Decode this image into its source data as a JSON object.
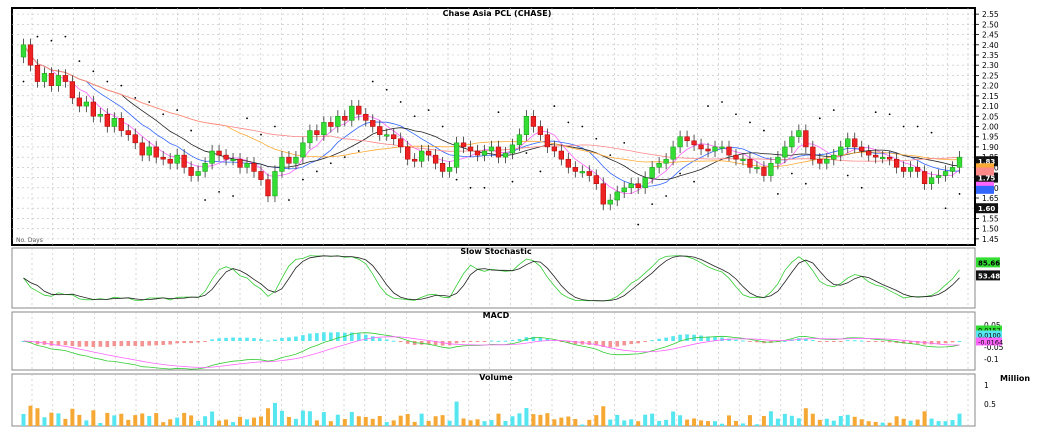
{
  "chart_data": {
    "type": "candlestick",
    "title": "Chase Asia PCL (CHASE)",
    "price_axis": {
      "ticks": [
        "2.55",
        "2.50",
        "2.45",
        "2.40",
        "2.35",
        "2.30",
        "2.25",
        "2.20",
        "2.15",
        "2.10",
        "2.05",
        "2.00",
        "1.95",
        "1.90",
        "1.85",
        "1.80",
        "1.75",
        "1.70",
        "1.65",
        "1.60",
        "1.55",
        "1.50",
        "1.45"
      ],
      "ylim": [
        1.42,
        2.58
      ]
    },
    "candles_close": [
      2.4,
      2.3,
      2.22,
      2.26,
      2.2,
      2.25,
      2.22,
      2.14,
      2.1,
      2.12,
      2.05,
      2.06,
      2.0,
      2.04,
      1.98,
      1.96,
      1.92,
      1.86,
      1.9,
      1.85,
      1.84,
      1.82,
      1.86,
      1.8,
      1.76,
      1.78,
      1.82,
      1.88,
      1.86,
      1.84,
      1.84,
      1.8,
      1.82,
      1.78,
      1.74,
      1.66,
      1.78,
      1.85,
      1.82,
      1.85,
      1.92,
      1.98,
      1.96,
      2.02,
      2.0,
      2.05,
      2.03,
      2.1,
      2.06,
      2.03,
      2.0,
      1.96,
      1.96,
      1.94,
      1.9,
      1.84,
      1.83,
      1.88,
      1.86,
      1.82,
      1.78,
      1.8,
      1.92,
      1.9,
      1.88,
      1.86,
      1.88,
      1.9,
      1.85,
      1.87,
      1.91,
      1.96,
      2.05,
      2.0,
      1.96,
      1.9,
      1.88,
      1.84,
      1.8,
      1.78,
      1.78,
      1.76,
      1.72,
      1.62,
      1.64,
      1.68,
      1.7,
      1.72,
      1.7,
      1.75,
      1.8,
      1.82,
      1.84,
      1.9,
      1.95,
      1.93,
      1.91,
      1.89,
      1.88,
      1.9,
      1.9,
      1.86,
      1.84,
      1.84,
      1.8,
      1.8,
      1.76,
      1.82,
      1.85,
      1.9,
      1.95,
      1.98,
      1.9,
      1.84,
      1.82,
      1.84,
      1.86,
      1.9,
      1.94,
      1.9,
      1.88,
      1.86,
      1.85,
      1.85,
      1.84,
      1.8,
      1.78,
      1.8,
      1.78,
      1.72,
      1.75,
      1.76,
      1.78,
      1.8,
      1.85
    ],
    "overlays": [
      "moving-average-lines",
      "parabolic-sar"
    ],
    "price_labels": [
      "1.83",
      "1.75",
      "1.60"
    ],
    "period_label": "No. Days",
    "stochastic": {
      "title": "Slow Stochastic",
      "labels": [
        "85.66",
        "53.48"
      ]
    },
    "macd": {
      "title": "MACD",
      "ticks": [
        "0.05",
        "-0.05",
        "-0.1"
      ],
      "labels": [
        "0.0152",
        "0.0100",
        "-0.0164"
      ]
    },
    "volume": {
      "title": "Volume",
      "unit": "Million",
      "ticks": [
        "1",
        "0.5"
      ]
    }
  }
}
